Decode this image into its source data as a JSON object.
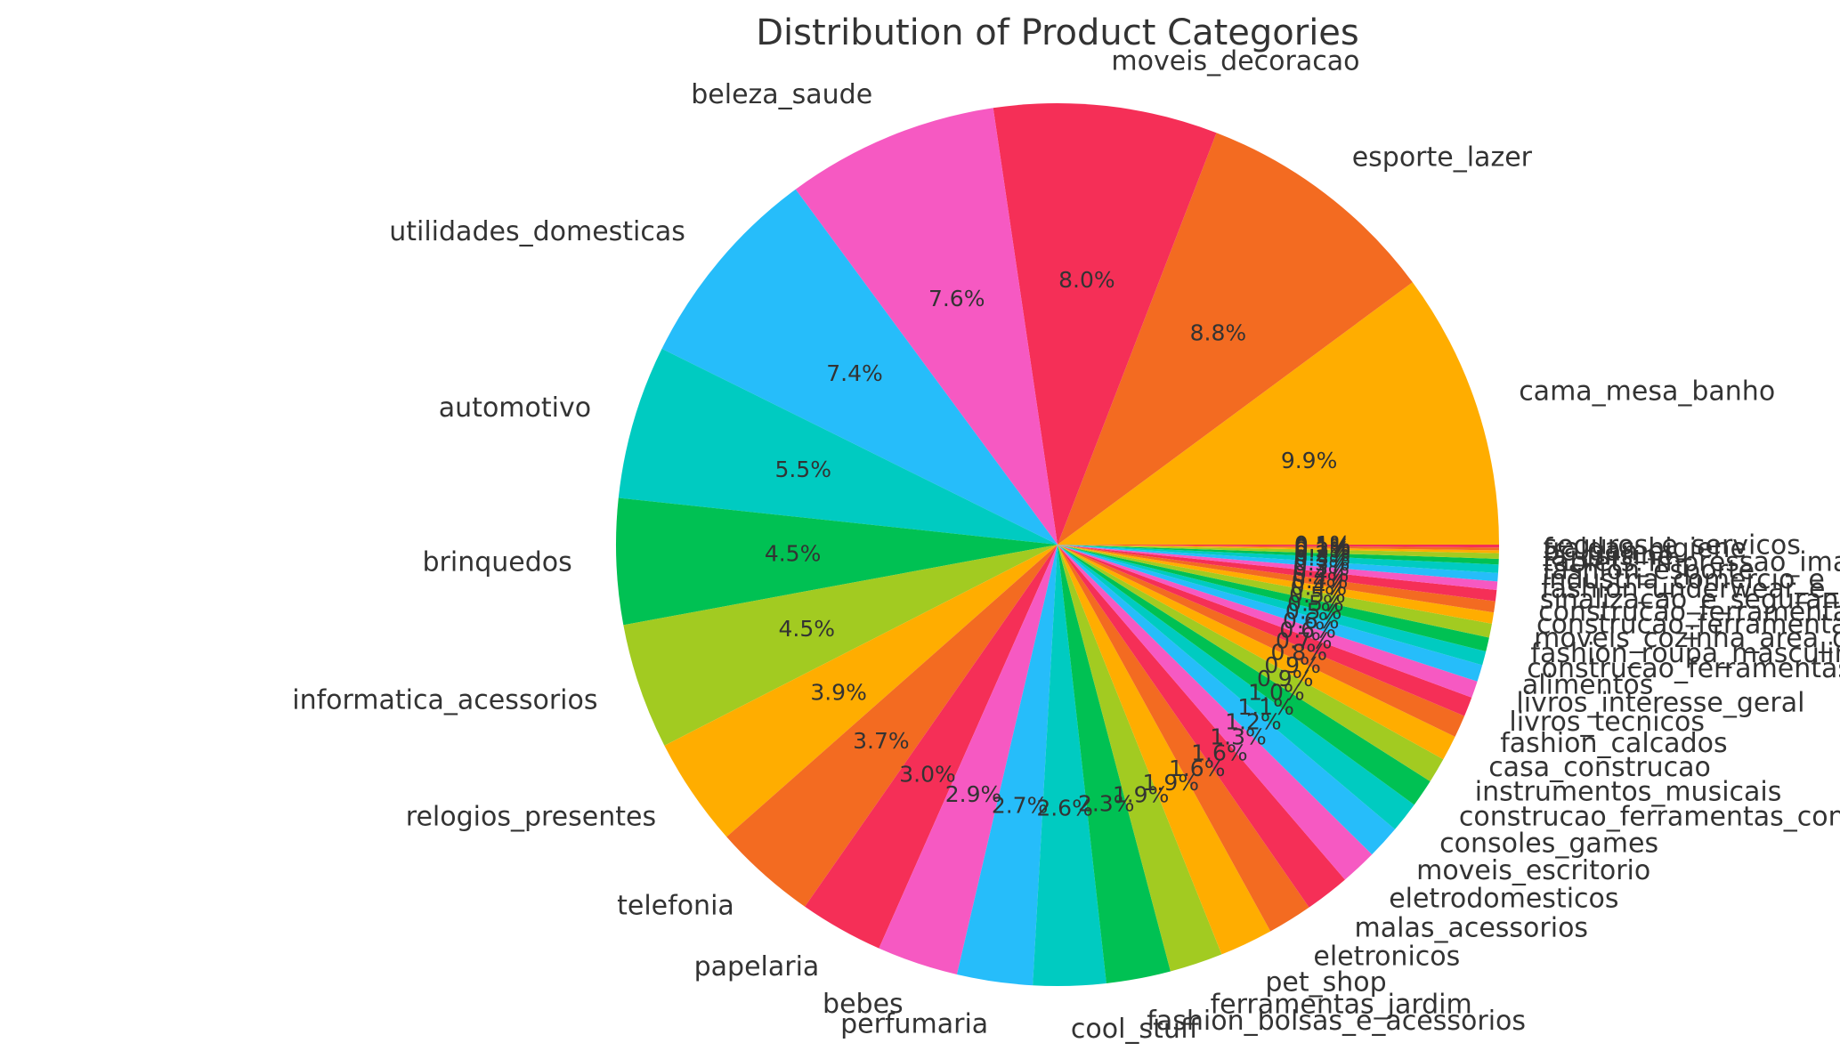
{
  "chart_data": {
    "type": "pie",
    "title": "Distribution of Product Categories",
    "start_angle_deg": 0,
    "direction": "counterclockwise",
    "value_format": "{v}%",
    "palette": [
      "#ffad00",
      "#f36b21",
      "#f52f57",
      "#f659c2",
      "#26bdfa",
      "#00cbc1",
      "#00c153",
      "#a2cb21"
    ],
    "slices": [
      {
        "label": "cama_mesa_banho",
        "value": 9.9
      },
      {
        "label": "esporte_lazer",
        "value": 8.8
      },
      {
        "label": "moveis_decoracao",
        "value": 8.0
      },
      {
        "label": "beleza_saude",
        "value": 7.6
      },
      {
        "label": "utilidades_domesticas",
        "value": 7.4
      },
      {
        "label": "automotivo",
        "value": 5.5
      },
      {
        "label": "brinquedos",
        "value": 4.5
      },
      {
        "label": "informatica_acessorios",
        "value": 4.5
      },
      {
        "label": "relogios_presentes",
        "value": 3.9
      },
      {
        "label": "telefonia",
        "value": 3.7
      },
      {
        "label": "papelaria",
        "value": 3.0
      },
      {
        "label": "bebes",
        "value": 2.9
      },
      {
        "label": "perfumaria",
        "value": 2.7
      },
      {
        "label": "cool_stuff",
        "value": 2.6
      },
      {
        "label": "fashion_bolsas_e_acessorios",
        "value": 2.3
      },
      {
        "label": "ferramentas_jardim",
        "value": 1.9
      },
      {
        "label": "pet_shop",
        "value": 1.9
      },
      {
        "label": "eletronicos",
        "value": 1.6
      },
      {
        "label": "malas_acessorios",
        "value": 1.6
      },
      {
        "label": "eletrodomesticos",
        "value": 1.3
      },
      {
        "label": "moveis_escritorio",
        "value": 1.2
      },
      {
        "label": "consoles_games",
        "value": 1.1
      },
      {
        "label": "construcao_ferramentas_construcao",
        "value": 1.0
      },
      {
        "label": "instrumentos_musicais",
        "value": 0.9
      },
      {
        "label": "casa_construcao",
        "value": 0.9
      },
      {
        "label": "fashion_calcados",
        "value": 0.8
      },
      {
        "label": "livros_tecnicos",
        "value": 0.7
      },
      {
        "label": "livros_interesse_geral",
        "value": 0.6
      },
      {
        "label": "alimentos",
        "value": 0.6
      },
      {
        "label": "construcao_ferramentas_jardim",
        "value": 0.5
      },
      {
        "label": "fashion_roupa_masculina",
        "value": 0.5
      },
      {
        "label": "moveis_cozinha_area_de_servico_jantar_e_jardim",
        "value": 0.5
      },
      {
        "label": "construcao_ferramentas_seguranca",
        "value": 0.4
      },
      {
        "label": "construcao_ferramentas_iluminacao",
        "value": 0.4
      },
      {
        "label": "sinalizacao_e_seguranca",
        "value": 0.4
      },
      {
        "label": "fashion_underwear_e_moda_praia",
        "value": 0.3
      },
      {
        "label": "industria_comercio_e_negocios",
        "value": 0.3
      },
      {
        "label": "fashion_esporte",
        "value": 0.3
      },
      {
        "label": "tablets_impressao_imagem",
        "value": 0.2
      },
      {
        "label": "la_cuisine",
        "value": 0.2
      },
      {
        "label": "pc_gamer",
        "value": 0.1
      },
      {
        "label": "fraldas_higiene",
        "value": 0.1
      },
      {
        "label": "seguros_e_servicos",
        "value": 0.1
      }
    ]
  }
}
